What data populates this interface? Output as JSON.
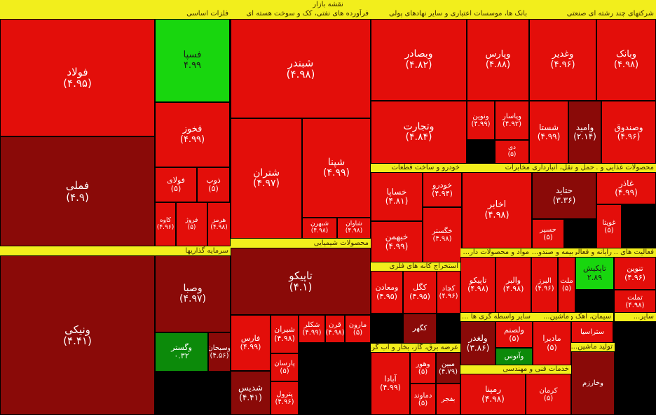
{
  "title": "نقشه بازار",
  "colors": {
    "red": "#e30e0a",
    "dark_red": "#8a0a08",
    "mid_red": "#c00c0a",
    "green": "#18d60e",
    "dark_green": "#0c8a0a",
    "header": "#f2ee1c"
  },
  "chart_data": {
    "type": "treemap",
    "title": "نقشه بازار",
    "sectors": [
      {
        "name": "فلزات اساسی"
      },
      {
        "name": "فرآورده های نفتی، کک و سوخت هسته ای"
      },
      {
        "name": "بانک ها، موسسات اعتباری و سایر نهادهای پولی"
      },
      {
        "name": "شرکتهای چند رشته ای صنعتی"
      },
      {
        "name": "سرمایه گذاریها"
      },
      {
        "name": "محصولات شیمیایی"
      },
      {
        "name": "خودرو و ساخت قطعات"
      },
      {
        "name": "مخابرات"
      },
      {
        "name": "محصولات غذایی و ..."
      },
      {
        "name": "حمل و نقل، انبارداری ..."
      },
      {
        "name": "استخراج کانه های فلزی"
      },
      {
        "name": "فعالیت های ..."
      },
      {
        "name": "رایانه و فعالی..."
      },
      {
        "name": "بیمه و صندو..."
      },
      {
        "name": "مواد و محصولات دار..."
      },
      {
        "name": "عرضه برق، گاز، بخار و آب گرم"
      },
      {
        "name": "خدمات فنی و مهندسی"
      },
      {
        "name": "سایر واسطه گری ها ..."
      },
      {
        "name": "ماشین..."
      },
      {
        "name": "سیمان، آهک و گچ"
      },
      {
        "name": "تولید ماشین..."
      },
      {
        "name": "ساير..."
      }
    ],
    "tiles": [
      {
        "symbol": "فولاد",
        "change": "(۴.۹۵)",
        "value": -4.95,
        "color": "red"
      },
      {
        "symbol": "فسپا",
        "change": "۴.۹۹",
        "value": 4.99,
        "color": "green"
      },
      {
        "symbol": "فخوز",
        "change": "(۴.۹۹)",
        "value": -4.99,
        "color": "red"
      },
      {
        "symbol": "فملی",
        "change": "(۴.۹)",
        "value": -4.9,
        "color": "dark_red"
      },
      {
        "symbol": "فولای",
        "change": "(۵)",
        "value": -5,
        "color": "red"
      },
      {
        "symbol": "ذوب",
        "change": "(۵)",
        "value": -5,
        "color": "red"
      },
      {
        "symbol": "کاوه",
        "change": "(۴.۹۶)",
        "value": -4.96,
        "color": "red"
      },
      {
        "symbol": "فروژ",
        "change": "(۵)",
        "value": -5,
        "color": "red"
      },
      {
        "symbol": "هرمز",
        "change": "(۴.۹۸)",
        "value": -4.98,
        "color": "red"
      },
      {
        "symbol": "شبندر",
        "change": "(۴.۹۸)",
        "value": -4.98,
        "color": "red"
      },
      {
        "symbol": "شتران",
        "change": "(۴.۹۷)",
        "value": -4.97,
        "color": "red"
      },
      {
        "symbol": "شپنا",
        "change": "(۴.۹۹)",
        "value": -4.99,
        "color": "red"
      },
      {
        "symbol": "شبهرن",
        "change": "(۴.۹۸)",
        "value": -4.98,
        "color": "red"
      },
      {
        "symbol": "شاوان",
        "change": "(۴.۹۸)",
        "value": -4.98,
        "color": "red"
      },
      {
        "symbol": "وبصادر",
        "change": "(۴.۸۲)",
        "value": -4.82,
        "color": "red"
      },
      {
        "symbol": "وتجارت",
        "change": "(۴.۸۴)",
        "value": -4.84,
        "color": "red"
      },
      {
        "symbol": "وپارس",
        "change": "(۴.۸۸)",
        "value": -4.88,
        "color": "red"
      },
      {
        "symbol": "ونوین",
        "change": "(۴.۹۹)",
        "value": -4.99,
        "color": "red"
      },
      {
        "symbol": "وپاسار",
        "change": "(۴.۹۲)",
        "value": -4.92,
        "color": "red"
      },
      {
        "symbol": "دی",
        "change": "(۵)",
        "value": -5,
        "color": "red"
      },
      {
        "symbol": "وغدیر",
        "change": "(۴.۹۶)",
        "value": -4.96,
        "color": "red"
      },
      {
        "symbol": "وبانک",
        "change": "(۴.۹۸)",
        "value": -4.98,
        "color": "red"
      },
      {
        "symbol": "شستا",
        "change": "(۴.۹۹)",
        "value": -4.99,
        "color": "red"
      },
      {
        "symbol": "وامید",
        "change": "(۲.۱۴)",
        "value": -2.14,
        "color": "dark_red"
      },
      {
        "symbol": "وصندوق",
        "change": "(۴.۹۶)",
        "value": -4.96,
        "color": "red"
      },
      {
        "symbol": "ونیکی",
        "change": "(۴.۴۱)",
        "value": -4.41,
        "color": "dark_red"
      },
      {
        "symbol": "وصبا",
        "change": "(۴.۹۷)",
        "value": -4.97,
        "color": "dark_red"
      },
      {
        "symbol": "وگستر",
        "change": "۰.۳۲",
        "value": 0.32,
        "color": "dark_green"
      },
      {
        "symbol": "وسبحان",
        "change": "(۴.۵۶)",
        "value": -4.56,
        "color": "dark_red"
      },
      {
        "symbol": "تاپیکو",
        "change": "(۴.۱)",
        "value": -4.1,
        "color": "dark_red"
      },
      {
        "symbol": "فارس",
        "change": "(۴.۹۹)",
        "value": -4.99,
        "color": "red"
      },
      {
        "symbol": "شیران",
        "change": "(۴.۹۸)",
        "value": -4.98,
        "color": "red"
      },
      {
        "symbol": "شکلر",
        "change": "(۴.۹۹)",
        "value": -4.99,
        "color": "red"
      },
      {
        "symbol": "قرن",
        "change": "(۴.۹۸)",
        "value": -4.98,
        "color": "red"
      },
      {
        "symbol": "مارون",
        "change": "(۵)",
        "value": -5,
        "color": "red"
      },
      {
        "symbol": "شدیس",
        "change": "(۴.۴۱)",
        "value": -4.41,
        "color": "dark_red"
      },
      {
        "symbol": "پارسان",
        "change": "(۵)",
        "value": -5,
        "color": "red"
      },
      {
        "symbol": "پترول",
        "change": "(۴.۹۶)",
        "value": -4.96,
        "color": "red"
      },
      {
        "symbol": "خساپا",
        "change": "(۴.۸۱)",
        "value": -4.81,
        "color": "red"
      },
      {
        "symbol": "خودرو",
        "change": "(۴.۹۴)",
        "value": -4.94,
        "color": "red"
      },
      {
        "symbol": "خبهمن",
        "change": "(۴.۹۹)",
        "value": -4.99,
        "color": "red"
      },
      {
        "symbol": "خگستر",
        "change": "(۴.۹۸)",
        "value": -4.98,
        "color": "red"
      },
      {
        "symbol": "اخابر",
        "change": "(۴.۹۸)",
        "value": -4.98,
        "color": "red"
      },
      {
        "symbol": "حتاید",
        "change": "(۳.۳۶)",
        "value": -3.36,
        "color": "dark_red"
      },
      {
        "symbol": "حسیر",
        "change": "(۵)",
        "value": -5,
        "color": "red"
      },
      {
        "symbol": "غاذر",
        "change": "(۴.۹۹)",
        "value": -4.99,
        "color": "red"
      },
      {
        "symbol": "غویتا",
        "change": "(۵)",
        "value": -5,
        "color": "red"
      },
      {
        "symbol": "ومعادن",
        "change": "(۴.۹۵)",
        "value": -4.95,
        "color": "red"
      },
      {
        "symbol": "کگل",
        "change": "(۴.۹۵)",
        "value": -4.95,
        "color": "red"
      },
      {
        "symbol": "کچاد",
        "change": "(۴.۹۶)",
        "value": -4.96,
        "color": "red"
      },
      {
        "symbol": "کگهر",
        "change": "",
        "value": null,
        "color": "dark_red"
      },
      {
        "symbol": "تاپیکو",
        "change": "(۴.۹۸)",
        "value": -4.98,
        "color": "red"
      },
      {
        "symbol": "والبر",
        "change": "(۴.۹۸)",
        "value": -4.98,
        "color": "red"
      },
      {
        "symbol": "البرز",
        "change": "(۴.۹۶)",
        "value": -4.96,
        "color": "red"
      },
      {
        "symbol": "ملت",
        "change": "(۵)",
        "value": -5,
        "color": "red"
      },
      {
        "symbol": "تاپکیش",
        "change": "۲.۸۹",
        "value": 2.89,
        "color": "green"
      },
      {
        "symbol": "تنوین",
        "change": "(۴.۹۶)",
        "value": -4.96,
        "color": "red"
      },
      {
        "symbol": "تملت",
        "change": "(۴.۹۸)",
        "value": -4.98,
        "color": "red"
      },
      {
        "symbol": "ولغدر",
        "change": "(۳.۸۶)",
        "value": -3.86,
        "color": "dark_red"
      },
      {
        "symbol": "ولصنم",
        "change": "(۵)",
        "value": -5,
        "color": "red"
      },
      {
        "symbol": "وآتوس",
        "change": "",
        "value": null,
        "color": "dark_green"
      },
      {
        "symbol": "مادیرا",
        "change": "(۵)",
        "value": -5,
        "color": "red"
      },
      {
        "symbol": "ستراسیا",
        "change": "",
        "value": null,
        "color": "red"
      },
      {
        "symbol": "آبادا",
        "change": "(۴.۹۹)",
        "value": -4.99,
        "color": "red"
      },
      {
        "symbol": "وهور",
        "change": "(۵)",
        "value": -5,
        "color": "red"
      },
      {
        "symbol": "مبین",
        "change": "(۴.۷۹)",
        "value": -4.79,
        "color": "dark_red"
      },
      {
        "symbol": "دماوند",
        "change": "(۵)",
        "value": -5,
        "color": "red"
      },
      {
        "symbol": "بفجر",
        "change": "",
        "value": null,
        "color": "red"
      },
      {
        "symbol": "رمپنا",
        "change": "(۴.۹۸)",
        "value": -4.98,
        "color": "red"
      },
      {
        "symbol": "کرمان",
        "change": "(۵)",
        "value": -5,
        "color": "red"
      },
      {
        "symbol": "وخارزم",
        "change": "",
        "value": null,
        "color": "dark_red"
      }
    ]
  }
}
